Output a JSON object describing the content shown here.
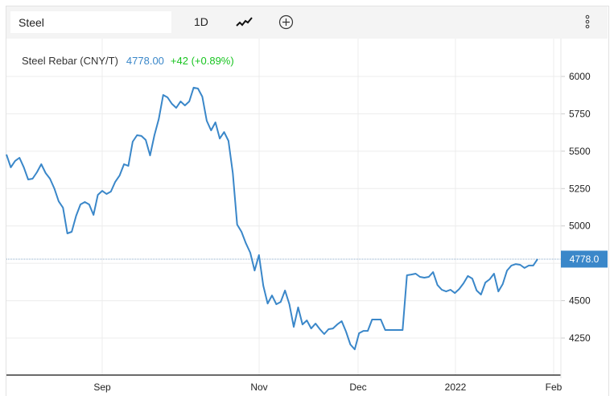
{
  "toolbar": {
    "search_value": "Steel",
    "interval_label": "1D",
    "chart_type_icon": "line-chart-icon",
    "add_icon": "plus-circle-icon",
    "menu_icon": "vertical-dots-icon"
  },
  "legend": {
    "name": "Steel Rebar (CNY/T)",
    "price": "4778.00",
    "change": "+42 (+0.89%)"
  },
  "colors": {
    "line": "#3a87c9",
    "up": "#17c41f",
    "price_tag": "#3a87c9"
  },
  "chart_data": {
    "type": "line",
    "title": "Steel Rebar (CNY/T)",
    "xlabel": "",
    "ylabel": "",
    "x_ticks": [
      "Sep",
      "Nov",
      "Dec",
      "2022",
      "Feb"
    ],
    "y_ticks": [
      4250,
      4500,
      4750,
      5000,
      5250,
      5500,
      5750,
      6000
    ],
    "y_tick_labels": [
      "4250",
      "4500",
      "5000",
      "5250",
      "5500",
      "5750",
      "6000"
    ],
    "ylim": [
      4002,
      6253
    ],
    "grid": true,
    "last_price_label": "4778.0",
    "series": [
      {
        "name": "Steel Rebar",
        "values": [
          5478,
          5392,
          5435,
          5456,
          5392,
          5311,
          5316,
          5359,
          5413,
          5354,
          5316,
          5251,
          5165,
          5122,
          4950,
          4961,
          5068,
          5144,
          5160,
          5144,
          5074,
          5208,
          5235,
          5214,
          5230,
          5295,
          5338,
          5413,
          5402,
          5564,
          5607,
          5602,
          5575,
          5472,
          5607,
          5715,
          5876,
          5860,
          5817,
          5790,
          5833,
          5806,
          5833,
          5925,
          5919,
          5865,
          5704,
          5639,
          5693,
          5585,
          5628,
          5569,
          5354,
          5009,
          4961,
          4885,
          4821,
          4702,
          4805,
          4600,
          4481,
          4535,
          4476,
          4492,
          4568,
          4476,
          4325,
          4455,
          4341,
          4368,
          4314,
          4347,
          4309,
          4277,
          4309,
          4314,
          4341,
          4363,
          4293,
          4207,
          4174,
          4282,
          4298,
          4298,
          4374,
          4374,
          4374,
          4304,
          4304,
          4304,
          4304,
          4304,
          4670,
          4675,
          4681,
          4659,
          4654,
          4659,
          4691,
          4605,
          4573,
          4562,
          4573,
          4551,
          4578,
          4616,
          4665,
          4648,
          4568,
          4541,
          4621,
          4643,
          4681,
          4562,
          4611,
          4702,
          4735,
          4745,
          4740,
          4719,
          4735,
          4735,
          4778
        ]
      }
    ]
  }
}
